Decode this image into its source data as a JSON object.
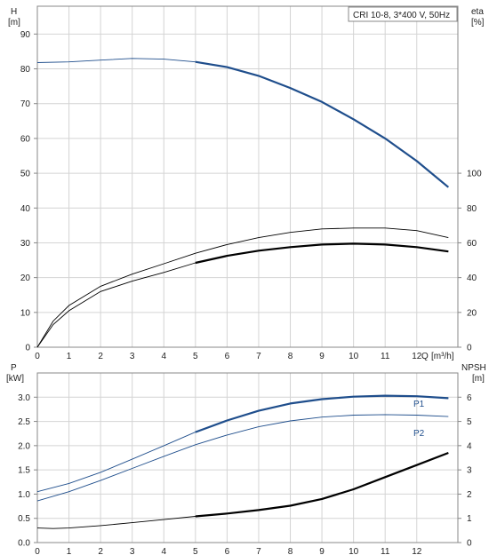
{
  "chart_data": [
    {
      "type": "line",
      "legend_text": "CRI 10-8, 3*400 V, 50Hz",
      "x_axis": {
        "label": "Q",
        "unit": "[m³/h]",
        "ticks": [
          "0",
          "1",
          "2",
          "3",
          "4",
          "5",
          "6",
          "7",
          "8",
          "9",
          "10",
          "11",
          "12"
        ],
        "range": [
          0,
          13.3
        ]
      },
      "y_left": {
        "label": "H",
        "unit": "[m]",
        "ticks": [
          "0",
          "10",
          "20",
          "30",
          "40",
          "50",
          "60",
          "70",
          "80",
          "90"
        ],
        "range": [
          0,
          98
        ]
      },
      "y_right": {
        "label": "eta",
        "unit": "[%]",
        "ticks": [
          "0",
          "20",
          "40",
          "60",
          "80",
          "100"
        ],
        "range": [
          0,
          196
        ]
      },
      "grid": true,
      "series": [
        {
          "axis": "left",
          "color": "#1f4e8c",
          "bold_from": 5,
          "x": [
            0,
            1,
            2,
            3,
            4,
            5,
            6,
            7,
            8,
            9,
            10,
            11,
            12,
            13
          ],
          "y": [
            81.8,
            82.0,
            82.5,
            83.0,
            82.8,
            82.0,
            80.5,
            78.0,
            74.5,
            70.5,
            65.5,
            60.0,
            53.5,
            46.0
          ]
        },
        {
          "axis": "right",
          "color": "#000000",
          "bold_from": 13.5,
          "x": [
            0,
            0.5,
            1,
            2,
            3,
            4,
            5,
            6,
            7,
            8,
            9,
            10,
            11,
            12,
            13
          ],
          "y": [
            0,
            15,
            24,
            35,
            42,
            48,
            54,
            59,
            63,
            66,
            68,
            68.5,
            68.5,
            67,
            63
          ]
        },
        {
          "axis": "right",
          "color": "#000000",
          "bold_from": 5,
          "x": [
            0,
            0.5,
            1,
            2,
            3,
            4,
            5,
            6,
            7,
            8,
            9,
            10,
            11,
            12,
            13
          ],
          "y": [
            0,
            13,
            21,
            32,
            38,
            43,
            48.5,
            52.5,
            55.5,
            57.5,
            59,
            59.5,
            59,
            57.5,
            55
          ]
        }
      ]
    },
    {
      "type": "line",
      "x_axis": {
        "ticks": [
          "0",
          "1",
          "2",
          "3",
          "4",
          "5",
          "6",
          "7",
          "8",
          "9",
          "10",
          "11",
          "12"
        ],
        "range": [
          0,
          13.3
        ]
      },
      "y_left": {
        "label": "P",
        "unit": "[kW]",
        "ticks": [
          "0.0",
          "0.5",
          "1.0",
          "1.5",
          "2.0",
          "2.5",
          "3.0"
        ],
        "range": [
          0,
          3.5
        ]
      },
      "y_right": {
        "label": "NPSH",
        "unit": "[m]",
        "ticks": [
          "0",
          "1",
          "2",
          "3",
          "4",
          "5",
          "6"
        ],
        "range": [
          0,
          7
        ]
      },
      "grid": true,
      "series": [
        {
          "name": "P1",
          "axis": "left",
          "color": "#1f4e8c",
          "bold_from": 5,
          "x": [
            0,
            1,
            2,
            3,
            4,
            5,
            6,
            7,
            8,
            9,
            10,
            11,
            12,
            13
          ],
          "y": [
            1.05,
            1.22,
            1.45,
            1.72,
            2.0,
            2.28,
            2.52,
            2.72,
            2.87,
            2.96,
            3.01,
            3.03,
            3.02,
            2.98
          ]
        },
        {
          "name": "P2",
          "axis": "left",
          "color": "#1f4e8c",
          "bold_from": 13.5,
          "x": [
            0,
            1,
            2,
            3,
            4,
            5,
            6,
            7,
            8,
            9,
            10,
            11,
            12,
            13
          ],
          "y": [
            0.86,
            1.05,
            1.28,
            1.53,
            1.78,
            2.02,
            2.22,
            2.39,
            2.51,
            2.59,
            2.63,
            2.64,
            2.63,
            2.6
          ]
        },
        {
          "axis": "right",
          "color": "#000000",
          "bold_from": 5,
          "x": [
            0,
            0.5,
            1,
            2,
            3,
            4,
            5,
            6,
            7,
            8,
            9,
            10,
            11,
            12,
            13
          ],
          "y": [
            0.6,
            0.58,
            0.6,
            0.7,
            0.82,
            0.95,
            1.08,
            1.2,
            1.34,
            1.52,
            1.8,
            2.2,
            2.7,
            3.2,
            3.7
          ]
        }
      ]
    }
  ]
}
